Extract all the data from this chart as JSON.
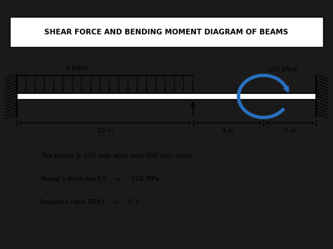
{
  "title": "SHEAR FORCE AND BENDING MOMENT DIAGRAM OF BEAMS",
  "bg_color": "#1a1a1a",
  "inner_bg": "#ffffff",
  "beam_color": "#000000",
  "udl_label": "6 kN/m",
  "moment_label": "120 kN-m",
  "dim_labels": [
    "10 m",
    "4 m",
    "3 m"
  ],
  "text_beam": "The beam is 200 mm wide and 300 mm deep",
  "text_modulus": "Young’s Modulus EX    =     210 MPa",
  "text_poisson": "Poissons ratio PRXY    =    0.3",
  "arrow_color": "#2a6fbe",
  "title_fontsize": 7.5,
  "body_fontsize": 6.8
}
